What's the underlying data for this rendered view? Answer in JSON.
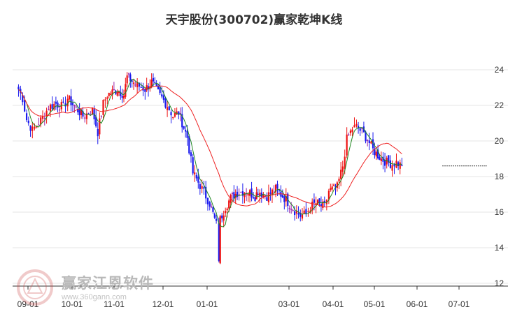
{
  "title": "天宇股份(300702)赢家乾坤K线",
  "watermark": {
    "name": "赢家江恩软件",
    "url": "www.360gann.com"
  },
  "chart_data": {
    "type": "candlestick",
    "title": "天宇股份(300702)赢家乾坤K线",
    "y_ticks": [
      "24",
      "22",
      "20",
      "18",
      "16",
      "14",
      "12"
    ],
    "x_ticks": [
      "09-01",
      "10-01",
      "11-01",
      "12-01",
      "01-01",
      "03-01",
      "04-01",
      "05-01",
      "06-01",
      "07-01"
    ],
    "ylim": [
      12,
      24.5
    ],
    "colors": {
      "up": "#ee1111",
      "down": "#1a1aee",
      "doji": "#9922aa",
      "ma_short": "#228822",
      "ma_long": "#ee2222",
      "last_price_line": "#444444",
      "grid": "#e4e4e4"
    },
    "last_price": 18.6,
    "anchors": [
      [
        "08-25",
        22.9
      ],
      [
        "08-28",
        22.4
      ],
      [
        "08-31",
        21.2
      ],
      [
        "09-04",
        20.6
      ],
      [
        "09-07",
        20.9
      ],
      [
        "09-11",
        21.3
      ],
      [
        "09-15",
        21.9
      ],
      [
        "09-20",
        22.1
      ],
      [
        "09-25",
        21.9
      ],
      [
        "09-28",
        22.4
      ],
      [
        "10-09",
        21.4
      ],
      [
        "10-16",
        21.7
      ],
      [
        "10-20",
        20.5
      ],
      [
        "10-24",
        22.1
      ],
      [
        "10-27",
        22.6
      ],
      [
        "11-03",
        22.9
      ],
      [
        "11-07",
        22.6
      ],
      [
        "11-09",
        23.6
      ],
      [
        "11-14",
        23.2
      ],
      [
        "11-20",
        22.9
      ],
      [
        "11-24",
        23.3
      ],
      [
        "11-28",
        22.7
      ],
      [
        "12-04",
        22.0
      ],
      [
        "12-08",
        21.4
      ],
      [
        "12-12",
        21.6
      ],
      [
        "12-18",
        20.2
      ],
      [
        "12-22",
        18.2
      ],
      [
        "12-27",
        17.5
      ],
      [
        "01-03",
        16.5
      ],
      [
        "01-08",
        15.3
      ],
      [
        "01-10",
        13.4
      ],
      [
        "01-11",
        15.6
      ],
      [
        "01-15",
        16.3
      ],
      [
        "01-19",
        16.8
      ],
      [
        "01-24",
        17.1
      ],
      [
        "01-31",
        17.2
      ],
      [
        "02-06",
        16.9
      ],
      [
        "02-08",
        17.2
      ],
      [
        "02-14",
        16.9
      ],
      [
        "02-20",
        17.3
      ],
      [
        "02-27",
        16.7
      ],
      [
        "03-05",
        16.1
      ],
      [
        "03-09",
        15.8
      ],
      [
        "03-13",
        15.9
      ],
      [
        "03-16",
        16.3
      ],
      [
        "03-20",
        16.5
      ],
      [
        "03-26",
        16.3
      ],
      [
        "03-29",
        17.2
      ],
      [
        "04-04",
        17.4
      ],
      [
        "04-08",
        18.6
      ],
      [
        "04-11",
        20.1
      ],
      [
        "04-15",
        20.7
      ],
      [
        "04-18",
        20.8
      ],
      [
        "04-22",
        20.5
      ],
      [
        "04-26",
        20.1
      ],
      [
        "04-30",
        19.5
      ],
      [
        "05-06",
        19.0
      ],
      [
        "05-10",
        18.8
      ],
      [
        "05-14",
        18.7
      ],
      [
        "05-17",
        18.8
      ],
      [
        "05-21",
        18.6
      ]
    ]
  }
}
